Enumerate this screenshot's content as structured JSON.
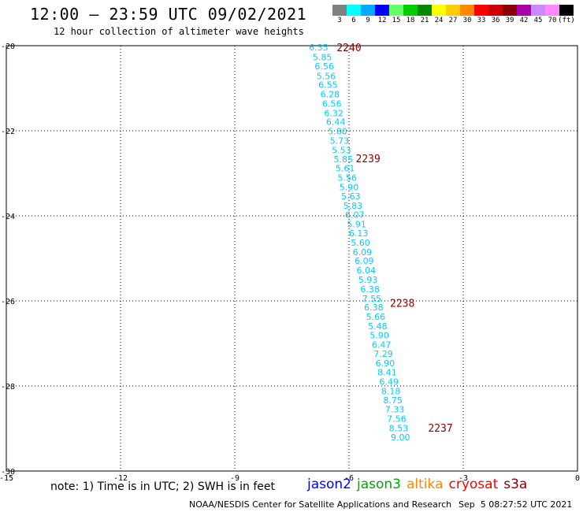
{
  "header": {
    "title": "12:00 — 23:59 UTC 09/02/2021",
    "subtitle": "12 hour collection of altimeter wave heights"
  },
  "legend": {
    "unit": "(ft)",
    "bins": [
      {
        "label": "3",
        "color": "#808080"
      },
      {
        "label": "6",
        "color": "#00ffff"
      },
      {
        "label": "9",
        "color": "#00aaff"
      },
      {
        "label": "12",
        "color": "#0000ff"
      },
      {
        "label": "15",
        "color": "#66ff66"
      },
      {
        "label": "18",
        "color": "#00cc00"
      },
      {
        "label": "21",
        "color": "#008800"
      },
      {
        "label": "24",
        "color": "#ffff00"
      },
      {
        "label": "27",
        "color": "#ffcc00"
      },
      {
        "label": "30",
        "color": "#ff8800"
      },
      {
        "label": "33",
        "color": "#ff0000"
      },
      {
        "label": "36",
        "color": "#cc0000"
      },
      {
        "label": "39",
        "color": "#880000"
      },
      {
        "label": "42",
        "color": "#aa00aa"
      },
      {
        "label": "45",
        "color": "#cc88ff"
      },
      {
        "label": "70",
        "color": "#ff88ff"
      },
      {
        "label": "",
        "color": "#000000"
      }
    ]
  },
  "note": "note: 1) Time is in UTC; 2) SWH is in feet",
  "satellites": [
    {
      "name": "jason2",
      "color": "#0000ff"
    },
    {
      "name": "jason3",
      "color": "#00aa00"
    },
    {
      "name": "altika",
      "color": "#ff8800"
    },
    {
      "name": "cryosat",
      "color": "#ff0000"
    },
    {
      "name": "s3a",
      "color": "#880000"
    }
  ],
  "footer": {
    "credit": "NOAA/NESDIS Center for Satellite Applications and Research",
    "timestamp": "Sep  5 08:27:52 UTC 2021"
  },
  "chart_data": {
    "type": "scatter",
    "xlim": [
      -15,
      0
    ],
    "ylim": [
      -30,
      -20
    ],
    "xticks": [
      -15,
      -12,
      -9,
      -6,
      -3,
      0
    ],
    "yticks": [
      -20,
      -22,
      -24,
      -26,
      -28,
      -30
    ],
    "grid": true,
    "value_color": "#00ccff",
    "time_color": "#880000",
    "points": [
      {
        "lon": -6.8,
        "lat": -20.04,
        "swh": "6.35"
      },
      {
        "lon": -6.7,
        "lat": -20.27,
        "swh": "5.85"
      },
      {
        "lon": -6.65,
        "lat": -20.48,
        "swh": "6.56"
      },
      {
        "lon": -6.6,
        "lat": -20.71,
        "swh": "5.56"
      },
      {
        "lon": -6.55,
        "lat": -20.92,
        "swh": "6.55"
      },
      {
        "lon": -6.5,
        "lat": -21.14,
        "swh": "6.28"
      },
      {
        "lon": -6.45,
        "lat": -21.36,
        "swh": "6.56"
      },
      {
        "lon": -6.4,
        "lat": -21.58,
        "swh": "6.32"
      },
      {
        "lon": -6.35,
        "lat": -21.79,
        "swh": "6.44"
      },
      {
        "lon": -6.3,
        "lat": -22.01,
        "swh": "5.80"
      },
      {
        "lon": -6.25,
        "lat": -22.23,
        "swh": "5.73"
      },
      {
        "lon": -6.2,
        "lat": -22.45,
        "swh": "5.53"
      },
      {
        "lon": -6.15,
        "lat": -22.67,
        "swh": "5.85"
      },
      {
        "lon": -6.1,
        "lat": -22.88,
        "swh": "5.61"
      },
      {
        "lon": -6.05,
        "lat": -23.1,
        "swh": "5.56"
      },
      {
        "lon": -6.0,
        "lat": -23.32,
        "swh": "5.90"
      },
      {
        "lon": -5.95,
        "lat": -23.54,
        "swh": "5.63"
      },
      {
        "lon": -5.9,
        "lat": -23.76,
        "swh": "5.83"
      },
      {
        "lon": -5.85,
        "lat": -23.97,
        "swh": "6.07"
      },
      {
        "lon": -5.8,
        "lat": -24.19,
        "swh": "5.91"
      },
      {
        "lon": -5.75,
        "lat": -24.41,
        "swh": "6.13"
      },
      {
        "lon": -5.7,
        "lat": -24.63,
        "swh": "5.60"
      },
      {
        "lon": -5.65,
        "lat": -24.85,
        "swh": "6.09"
      },
      {
        "lon": -5.6,
        "lat": -25.06,
        "swh": "6.09"
      },
      {
        "lon": -5.55,
        "lat": -25.28,
        "swh": "6.04"
      },
      {
        "lon": -5.5,
        "lat": -25.5,
        "swh": "5.93"
      },
      {
        "lon": -5.45,
        "lat": -25.72,
        "swh": "6.38"
      },
      {
        "lon": -5.4,
        "lat": -25.94,
        "swh": "7.55"
      },
      {
        "lon": -5.35,
        "lat": -26.15,
        "swh": "6.38"
      },
      {
        "lon": -5.3,
        "lat": -26.37,
        "swh": "5.66"
      },
      {
        "lon": -5.25,
        "lat": -26.59,
        "swh": "5.48"
      },
      {
        "lon": -5.2,
        "lat": -26.81,
        "swh": "5.90"
      },
      {
        "lon": -5.15,
        "lat": -27.03,
        "swh": "6.47"
      },
      {
        "lon": -5.1,
        "lat": -27.24,
        "swh": "7.29"
      },
      {
        "lon": -5.05,
        "lat": -27.46,
        "swh": "6.90"
      },
      {
        "lon": -5.0,
        "lat": -27.68,
        "swh": "8.41"
      },
      {
        "lon": -4.95,
        "lat": -27.9,
        "swh": "6.49"
      },
      {
        "lon": -4.9,
        "lat": -28.12,
        "swh": "8.18"
      },
      {
        "lon": -4.85,
        "lat": -28.33,
        "swh": "8.75"
      },
      {
        "lon": -4.8,
        "lat": -28.55,
        "swh": "7.33"
      },
      {
        "lon": -4.75,
        "lat": -28.77,
        "swh": "7.56"
      },
      {
        "lon": -4.7,
        "lat": -28.99,
        "swh": "8.53"
      },
      {
        "lon": -4.65,
        "lat": -29.2,
        "swh": "9.00"
      }
    ],
    "time_labels": [
      {
        "lon": -6.0,
        "lat": -20.04,
        "text": "2240"
      },
      {
        "lon": -5.5,
        "lat": -22.65,
        "text": "2239"
      },
      {
        "lon": -4.6,
        "lat": -26.05,
        "text": "2238"
      },
      {
        "lon": -3.6,
        "lat": -28.98,
        "text": "2237"
      }
    ]
  }
}
